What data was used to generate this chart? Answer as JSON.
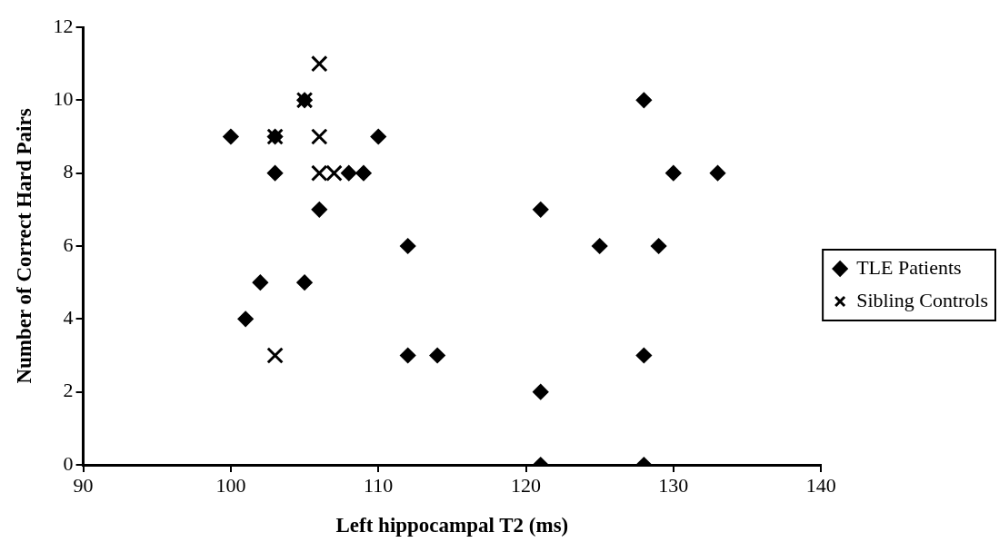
{
  "chart_data": {
    "type": "scatter",
    "xlabel": "Left hippocampal T2 (ms)",
    "ylabel": "Number of Correct Hard Pairs",
    "xlim": [
      90,
      140
    ],
    "xticks": [
      90,
      100,
      110,
      120,
      130,
      140
    ],
    "ylim": [
      0,
      12
    ],
    "yticks": [
      0,
      2,
      4,
      6,
      8,
      10,
      12
    ],
    "grid": false,
    "legend": "right",
    "series": [
      {
        "name": "TLE Patients",
        "color": "#000000",
        "marker": "diamond",
        "x": [
          100,
          103,
          103,
          105,
          106,
          105,
          102,
          101,
          112,
          110,
          108,
          109,
          112,
          114,
          121,
          121,
          121,
          128,
          128,
          128,
          125,
          129,
          130,
          133
        ],
        "values": [
          9,
          9,
          8,
          10,
          7,
          5,
          5,
          4,
          6,
          9,
          8,
          8,
          3,
          3,
          7,
          2,
          0,
          10,
          3,
          0,
          6,
          6,
          8,
          8
        ]
      },
      {
        "name": "Sibling Controls",
        "color": "#000000",
        "marker": "cross",
        "x": [
          106,
          105,
          103,
          106,
          106,
          107,
          103
        ],
        "values": [
          11,
          10,
          9,
          9,
          8,
          8,
          3
        ]
      }
    ]
  }
}
